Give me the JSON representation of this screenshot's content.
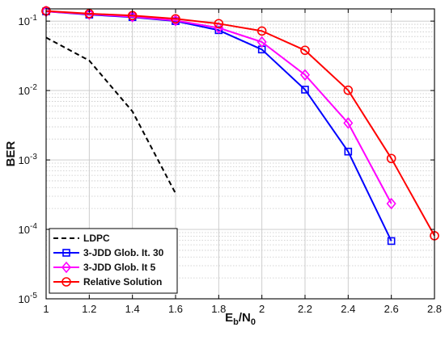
{
  "chart_data": {
    "type": "line",
    "title": "",
    "xlabel": "E_b/N_0",
    "ylabel": "BER",
    "xlim": [
      1,
      2.8
    ],
    "ylim": [
      1e-05,
      0.15
    ],
    "yscale": "log",
    "grid": true,
    "legend_position": "bottom-left",
    "x_ticks": [
      1,
      1.2,
      1.4,
      1.6,
      1.8,
      2,
      2.2,
      2.4,
      2.6,
      2.8
    ],
    "x_tick_labels": [
      "1",
      "1.2",
      "1.4",
      "1.6",
      "1.8",
      "2",
      "2.2",
      "2.4",
      "2.6",
      "2.8"
    ],
    "y_ticks": [
      {
        "value": 0.1,
        "base": "10",
        "exp": "-1"
      },
      {
        "value": 0.01,
        "base": "10",
        "exp": "-2"
      },
      {
        "value": 0.001,
        "base": "10",
        "exp": "-3"
      },
      {
        "value": 0.0001,
        "base": "10",
        "exp": "-4"
      },
      {
        "value": 1e-05,
        "base": "10",
        "exp": "-5"
      }
    ],
    "series": [
      {
        "name": "LDPC",
        "color": "#000000",
        "style": "dashed",
        "marker": "none",
        "x": [
          1.0,
          1.2,
          1.4,
          1.6
        ],
        "y": [
          0.058,
          0.027,
          0.005,
          0.00033
        ]
      },
      {
        "name": "3-JDD Glob. It. 30",
        "color": "#0000ff",
        "style": "solid",
        "marker": "square",
        "x": [
          1.0,
          1.2,
          1.4,
          1.6,
          1.8,
          2.0,
          2.2,
          2.4,
          2.6
        ],
        "y": [
          0.138,
          0.124,
          0.114,
          0.1,
          0.074,
          0.039,
          0.0103,
          0.00132,
          6.8e-05
        ]
      },
      {
        "name": "3-JDD Glob. It 5",
        "color": "#ff00ff",
        "style": "solid",
        "marker": "diamond",
        "x": [
          1.0,
          1.2,
          1.4,
          1.6,
          1.8,
          2.0,
          2.2,
          2.4,
          2.6
        ],
        "y": [
          0.138,
          0.126,
          0.116,
          0.102,
          0.08,
          0.05,
          0.0168,
          0.0034,
          0.000235
        ]
      },
      {
        "name": "Relative Solution",
        "color": "#ff0000",
        "style": "solid",
        "marker": "circle",
        "x": [
          1.0,
          1.2,
          1.4,
          1.6,
          1.8,
          2.0,
          2.2,
          2.4,
          2.6,
          2.8
        ],
        "y": [
          0.14,
          0.128,
          0.12,
          0.108,
          0.092,
          0.072,
          0.038,
          0.0101,
          0.00105,
          8.1e-05
        ]
      }
    ]
  }
}
